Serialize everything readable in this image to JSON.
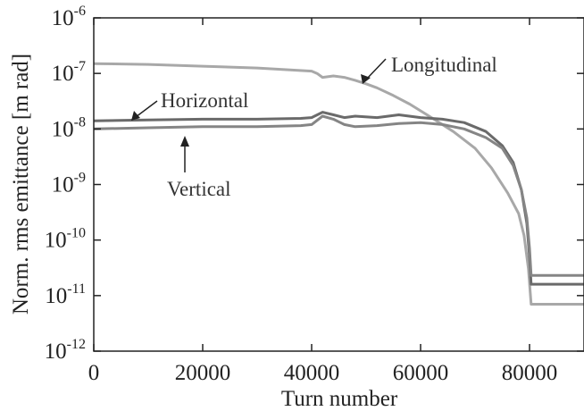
{
  "chart_data": {
    "type": "line",
    "xlabel": "Turn number",
    "ylabel": "Norm. rms emittance [m rad]",
    "x_ticks": [
      "0",
      "20000",
      "40000",
      "60000",
      "80000"
    ],
    "y_ticks": [
      {
        "base": "10",
        "exp": "-12"
      },
      {
        "base": "10",
        "exp": "-11"
      },
      {
        "base": "10",
        "exp": "-10"
      },
      {
        "base": "10",
        "exp": "-9"
      },
      {
        "base": "10",
        "exp": "-8"
      },
      {
        "base": "10",
        "exp": "-7"
      },
      {
        "base": "10",
        "exp": "-6"
      }
    ],
    "xlim": [
      0,
      90000
    ],
    "ylim": [
      1e-12,
      1e-06
    ],
    "yscale": "log",
    "grid": false,
    "series": [
      {
        "name": "Longitudinal",
        "color": "#a8a8a8",
        "x": [
          0,
          10000,
          20000,
          30000,
          40000,
          41000,
          42000,
          44000,
          46000,
          48000,
          50000,
          52000,
          55000,
          58000,
          62000,
          66000,
          70000,
          73000,
          76000,
          78000,
          79000,
          79800,
          80300,
          81000,
          90000
        ],
        "y": [
          1.5e-07,
          1.45e-07,
          1.35e-07,
          1.25e-07,
          1.1e-07,
          1e-07,
          8.5e-08,
          9e-08,
          8.5e-08,
          7.5e-08,
          6.5e-08,
          5.5e-08,
          4e-08,
          2.8e-08,
          1.6e-08,
          9e-09,
          4.5e-09,
          2e-09,
          7e-10,
          3e-10,
          1.2e-10,
          3e-11,
          7e-12,
          7e-12,
          7e-12
        ]
      },
      {
        "name": "Horizontal",
        "color": "#6a6a6a",
        "x": [
          0,
          10000,
          20000,
          30000,
          38000,
          40000,
          42000,
          44000,
          46000,
          48000,
          52000,
          56000,
          60000,
          64000,
          68000,
          72000,
          75000,
          77000,
          78500,
          79500,
          80000,
          80300,
          81000,
          90000
        ],
        "y": [
          1.4e-08,
          1.45e-08,
          1.5e-08,
          1.5e-08,
          1.55e-08,
          1.6e-08,
          2e-08,
          1.8e-08,
          1.6e-08,
          1.7e-08,
          1.6e-08,
          1.8e-08,
          1.6e-08,
          1.5e-08,
          1.3e-08,
          9e-09,
          5e-09,
          2.5e-09,
          8e-10,
          2e-10,
          5e-11,
          1.6e-11,
          1.6e-11,
          1.6e-11
        ]
      },
      {
        "name": "Vertical",
        "color": "#858585",
        "x": [
          0,
          10000,
          20000,
          30000,
          38000,
          40000,
          42000,
          44000,
          46000,
          48000,
          52000,
          56000,
          60000,
          64000,
          68000,
          72000,
          75000,
          77000,
          78500,
          79500,
          80000,
          80300,
          81000,
          90000
        ],
        "y": [
          1e-08,
          1.05e-08,
          1.1e-08,
          1.1e-08,
          1.15e-08,
          1.2e-08,
          1.7e-08,
          1.5e-08,
          1.2e-08,
          1.1e-08,
          1.15e-08,
          1.25e-08,
          1.3e-08,
          1.2e-08,
          1e-08,
          7e-09,
          4.5e-09,
          2.2e-09,
          8e-10,
          2.5e-10,
          7e-11,
          2.3e-11,
          2.3e-11,
          2.3e-11
        ]
      }
    ],
    "annotations": [
      {
        "text": "Longitudinal"
      },
      {
        "text": "Horizontal"
      },
      {
        "text": "Vertical"
      }
    ]
  }
}
